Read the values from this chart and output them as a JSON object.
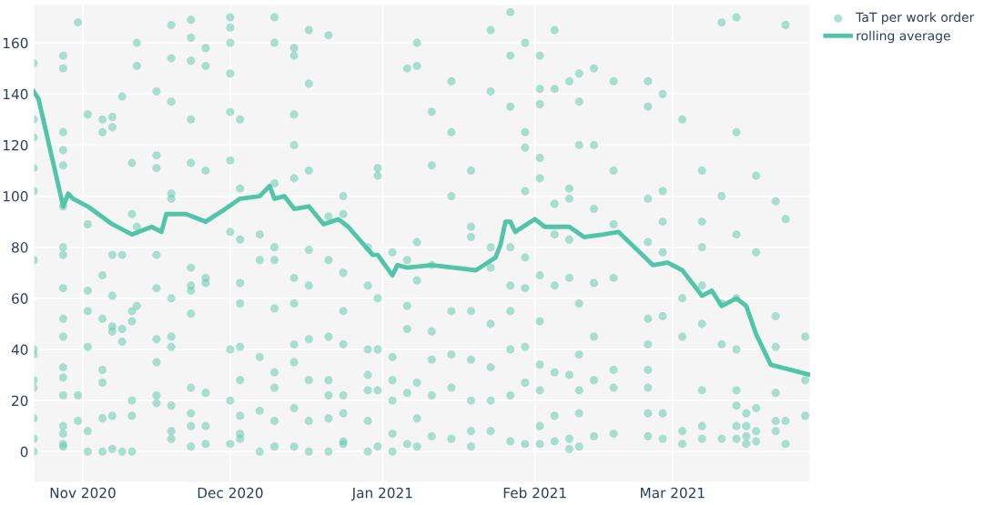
{
  "chart_data": {
    "type": "scatter",
    "xlim": [
      "2020-10-22",
      "2021-03-29"
    ],
    "xticks": [
      {
        "value": "2020-11-01",
        "label": "Nov 2020"
      },
      {
        "value": "2020-12-01",
        "label": "Dec 2020"
      },
      {
        "value": "2021-01-01",
        "label": "Jan 2021"
      },
      {
        "value": "2021-02-01",
        "label": "Feb 2021"
      },
      {
        "value": "2021-03-01",
        "label": "Mar 2021"
      }
    ],
    "ylim": [
      -12,
      175
    ],
    "yticks": [
      0,
      20,
      40,
      60,
      80,
      100,
      120,
      140,
      160
    ],
    "grid": true,
    "legend": "top right",
    "series": [
      {
        "name": "TaT per work order",
        "marker": "circle",
        "color": "#5cc8ab",
        "x": [
          "2020-10-22",
          "2020-10-22",
          "2020-10-22",
          "2020-10-22",
          "2020-10-22",
          "2020-10-22",
          "2020-10-22",
          "2020-10-22",
          "2020-10-22",
          "2020-10-22",
          "2020-10-22",
          "2020-10-22",
          "2020-10-22",
          "2020-10-28",
          "2020-10-28",
          "2020-10-28",
          "2020-10-28",
          "2020-10-28",
          "2020-10-28",
          "2020-10-28",
          "2020-10-28",
          "2020-10-28",
          "2020-10-28",
          "2020-10-28",
          "2020-10-28",
          "2020-10-28",
          "2020-10-28",
          "2020-10-28",
          "2020-10-28",
          "2020-10-28",
          "2020-10-28",
          "2020-10-31",
          "2020-10-31",
          "2020-10-31",
          "2020-11-02",
          "2020-11-02",
          "2020-11-02",
          "2020-11-02",
          "2020-11-02",
          "2020-11-02",
          "2020-11-02",
          "2020-11-05",
          "2020-11-05",
          "2020-11-05",
          "2020-11-05",
          "2020-11-05",
          "2020-11-05",
          "2020-11-05",
          "2020-11-05",
          "2020-11-07",
          "2020-11-07",
          "2020-11-07",
          "2020-11-07",
          "2020-11-07",
          "2020-11-07",
          "2020-11-07",
          "2020-11-07",
          "2020-11-09",
          "2020-11-09",
          "2020-11-09",
          "2020-11-09",
          "2020-11-09",
          "2020-11-11",
          "2020-11-11",
          "2020-11-11",
          "2020-11-11",
          "2020-11-11",
          "2020-11-11",
          "2020-11-11",
          "2020-11-12",
          "2020-11-12",
          "2020-11-12",
          "2020-11-12",
          "2020-11-16",
          "2020-11-16",
          "2020-11-16",
          "2020-11-16",
          "2020-11-16",
          "2020-11-16",
          "2020-11-16",
          "2020-11-16",
          "2020-11-16",
          "2020-11-19",
          "2020-11-19",
          "2020-11-19",
          "2020-11-19",
          "2020-11-19",
          "2020-11-19",
          "2020-11-19",
          "2020-11-19",
          "2020-11-19",
          "2020-11-19",
          "2020-11-19",
          "2020-11-23",
          "2020-11-23",
          "2020-11-23",
          "2020-11-23",
          "2020-11-23",
          "2020-11-23",
          "2020-11-23",
          "2020-11-23",
          "2020-11-23",
          "2020-11-23",
          "2020-11-23",
          "2020-11-23",
          "2020-11-23",
          "2020-11-26",
          "2020-11-26",
          "2020-11-26",
          "2020-11-26",
          "2020-11-26",
          "2020-11-26",
          "2020-11-26",
          "2020-11-26",
          "2020-12-01",
          "2020-12-01",
          "2020-12-01",
          "2020-12-01",
          "2020-12-01",
          "2020-12-01",
          "2020-12-01",
          "2020-12-01",
          "2020-12-01",
          "2020-12-01",
          "2020-12-03",
          "2020-12-03",
          "2020-12-03",
          "2020-12-03",
          "2020-12-03",
          "2020-12-03",
          "2020-12-03",
          "2020-12-03",
          "2020-12-03",
          "2020-12-03",
          "2020-12-07",
          "2020-12-07",
          "2020-12-07",
          "2020-12-07",
          "2020-12-07",
          "2020-12-10",
          "2020-12-10",
          "2020-12-10",
          "2020-12-10",
          "2020-12-10",
          "2020-12-10",
          "2020-12-10",
          "2020-12-10",
          "2020-12-10",
          "2020-12-10",
          "2020-12-14",
          "2020-12-14",
          "2020-12-14",
          "2020-12-14",
          "2020-12-14",
          "2020-12-14",
          "2020-12-14",
          "2020-12-14",
          "2020-12-14",
          "2020-12-14",
          "2020-12-14",
          "2020-12-17",
          "2020-12-17",
          "2020-12-17",
          "2020-12-17",
          "2020-12-17",
          "2020-12-17",
          "2020-12-17",
          "2020-12-17",
          "2020-12-17",
          "2020-12-21",
          "2020-12-21",
          "2020-12-21",
          "2020-12-21",
          "2020-12-21",
          "2020-12-21",
          "2020-12-21",
          "2020-12-21",
          "2020-12-24",
          "2020-12-24",
          "2020-12-24",
          "2020-12-24",
          "2020-12-24",
          "2020-12-24",
          "2020-12-24",
          "2020-12-24",
          "2020-12-24",
          "2020-12-29",
          "2020-12-29",
          "2020-12-29",
          "2020-12-29",
          "2020-12-29",
          "2020-12-29",
          "2020-12-29",
          "2020-12-31",
          "2020-12-31",
          "2020-12-31",
          "2020-12-31",
          "2020-12-31",
          "2020-12-31",
          "2021-01-03",
          "2021-01-03",
          "2021-01-03",
          "2021-01-03",
          "2021-01-03",
          "2021-01-03",
          "2021-01-06",
          "2021-01-06",
          "2021-01-06",
          "2021-01-06",
          "2021-01-06",
          "2021-01-06",
          "2021-01-08",
          "2021-01-08",
          "2021-01-08",
          "2021-01-08",
          "2021-01-08",
          "2021-01-08",
          "2021-01-08",
          "2021-01-11",
          "2021-01-11",
          "2021-01-11",
          "2021-01-11",
          "2021-01-11",
          "2021-01-11",
          "2021-01-11",
          "2021-01-15",
          "2021-01-15",
          "2021-01-15",
          "2021-01-15",
          "2021-01-15",
          "2021-01-15",
          "2021-01-15",
          "2021-01-19",
          "2021-01-19",
          "2021-01-19",
          "2021-01-19",
          "2021-01-19",
          "2021-01-19",
          "2021-01-19",
          "2021-01-19",
          "2021-01-23",
          "2021-01-23",
          "2021-01-23",
          "2021-01-23",
          "2021-01-23",
          "2021-01-23",
          "2021-01-23",
          "2021-01-23",
          "2021-01-27",
          "2021-01-27",
          "2021-01-27",
          "2021-01-27",
          "2021-01-27",
          "2021-01-27",
          "2021-01-27",
          "2021-01-27",
          "2021-01-27",
          "2021-01-30",
          "2021-01-30",
          "2021-01-30",
          "2021-01-30",
          "2021-01-30",
          "2021-01-30",
          "2021-01-30",
          "2021-01-30",
          "2021-01-30",
          "2021-02-02",
          "2021-02-02",
          "2021-02-02",
          "2021-02-02",
          "2021-02-02",
          "2021-02-02",
          "2021-02-02",
          "2021-02-02",
          "2021-02-02",
          "2021-02-02",
          "2021-02-02",
          "2021-02-05",
          "2021-02-05",
          "2021-02-05",
          "2021-02-05",
          "2021-02-05",
          "2021-02-05",
          "2021-02-05",
          "2021-02-05",
          "2021-02-08",
          "2021-02-08",
          "2021-02-08",
          "2021-02-08",
          "2021-02-08",
          "2021-02-08",
          "2021-02-08",
          "2021-02-08",
          "2021-02-10",
          "2021-02-10",
          "2021-02-10",
          "2021-02-10",
          "2021-02-10",
          "2021-02-10",
          "2021-02-10",
          "2021-02-10",
          "2021-02-13",
          "2021-02-13",
          "2021-02-13",
          "2021-02-13",
          "2021-02-13",
          "2021-02-13",
          "2021-02-13",
          "2021-02-17",
          "2021-02-17",
          "2021-02-17",
          "2021-02-17",
          "2021-02-17",
          "2021-02-17",
          "2021-02-17",
          "2021-02-24",
          "2021-02-24",
          "2021-02-24",
          "2021-02-24",
          "2021-02-24",
          "2021-02-24",
          "2021-02-24",
          "2021-02-24",
          "2021-02-24",
          "2021-02-24",
          "2021-02-27",
          "2021-02-27",
          "2021-02-27",
          "2021-02-27",
          "2021-02-27",
          "2021-02-27",
          "2021-02-27",
          "2021-03-03",
          "2021-03-03",
          "2021-03-03",
          "2021-03-03",
          "2021-03-03",
          "2021-03-07",
          "2021-03-07",
          "2021-03-07",
          "2021-03-07",
          "2021-03-07",
          "2021-03-07",
          "2021-03-07",
          "2021-03-07",
          "2021-03-11",
          "2021-03-11",
          "2021-03-11",
          "2021-03-11",
          "2021-03-11",
          "2021-03-14",
          "2021-03-14",
          "2021-03-14",
          "2021-03-14",
          "2021-03-14",
          "2021-03-14",
          "2021-03-14",
          "2021-03-14",
          "2021-03-14",
          "2021-03-16",
          "2021-03-16",
          "2021-03-16",
          "2021-03-16",
          "2021-03-18",
          "2021-03-18",
          "2021-03-18",
          "2021-03-18",
          "2021-03-18",
          "2021-03-22",
          "2021-03-22",
          "2021-03-22",
          "2021-03-22",
          "2021-03-22",
          "2021-03-22",
          "2021-03-24",
          "2021-03-24",
          "2021-03-24",
          "2021-03-24",
          "2021-03-28",
          "2021-03-28",
          "2021-03-28"
        ],
        "values": [
          40,
          38,
          28,
          25,
          13,
          5,
          0,
          111,
          130,
          152,
          123,
          102,
          75,
          155,
          150,
          125,
          118,
          112,
          96,
          80,
          77,
          64,
          52,
          45,
          33,
          29,
          22,
          10,
          7,
          3,
          2,
          168,
          22,
          12,
          132,
          89,
          63,
          55,
          41,
          8,
          0,
          130,
          125,
          69,
          52,
          32,
          27,
          13,
          0,
          131,
          127,
          77,
          61,
          49,
          47,
          14,
          1,
          139,
          77,
          48,
          43,
          0,
          113,
          93,
          55,
          51,
          20,
          14,
          0,
          160,
          151,
          88,
          57,
          141,
          116,
          111,
          77,
          64,
          44,
          35,
          22,
          19,
          167,
          154,
          137,
          99,
          101,
          60,
          45,
          41,
          18,
          5,
          8,
          169,
          162,
          153,
          130,
          113,
          72,
          65,
          63,
          54,
          25,
          15,
          10,
          2,
          158,
          151,
          110,
          68,
          66,
          23,
          10,
          3,
          170,
          166,
          160,
          148,
          133,
          114,
          86,
          40,
          20,
          3,
          130,
          103,
          83,
          66,
          58,
          41,
          28,
          14,
          5,
          7,
          85,
          75,
          37,
          16,
          0,
          170,
          160,
          105,
          80,
          75,
          56,
          31,
          25,
          12,
          2,
          158,
          155,
          132,
          120,
          107,
          68,
          58,
          42,
          35,
          17,
          2,
          165,
          144,
          110,
          79,
          65,
          44,
          28,
          12,
          0,
          163,
          92,
          75,
          45,
          28,
          22,
          13,
          0,
          100,
          93,
          70,
          55,
          42,
          22,
          15,
          4,
          3,
          80,
          65,
          40,
          30,
          24,
          12,
          0,
          111,
          108,
          60,
          40,
          24,
          2,
          78,
          37,
          28,
          20,
          7,
          0,
          150,
          75,
          57,
          48,
          23,
          3,
          160,
          151,
          82,
          67,
          27,
          13,
          2,
          133,
          112,
          73,
          47,
          36,
          22,
          6,
          145,
          125,
          100,
          55,
          38,
          25,
          5,
          110,
          88,
          84,
          55,
          36,
          20,
          8,
          2,
          165,
          141,
          80,
          72,
          50,
          33,
          20,
          8,
          172,
          155,
          135,
          80,
          65,
          55,
          40,
          22,
          4,
          160,
          125,
          119,
          102,
          76,
          64,
          41,
          27,
          3,
          155,
          142,
          136,
          115,
          107,
          69,
          51,
          34,
          24,
          10,
          3,
          165,
          142,
          97,
          85,
          65,
          31,
          14,
          4,
          145,
          103,
          99,
          83,
          68,
          30,
          5,
          1,
          148,
          137,
          120,
          58,
          38,
          24,
          15,
          2,
          150,
          120,
          95,
          66,
          45,
          28,
          6,
          145,
          110,
          89,
          68,
          32,
          25,
          7,
          145,
          135,
          99,
          82,
          52,
          42,
          32,
          25,
          15,
          6,
          140,
          102,
          90,
          78,
          53,
          15,
          5,
          130,
          60,
          45,
          8,
          3,
          110,
          90,
          80,
          65,
          50,
          24,
          10,
          5,
          168,
          100,
          58,
          42,
          5,
          170,
          125,
          85,
          60,
          40,
          24,
          18,
          10,
          5,
          15,
          10,
          6,
          3,
          108,
          78,
          17,
          8,
          4,
          98,
          53,
          41,
          23,
          12,
          8,
          167,
          91,
          12,
          3,
          45,
          28,
          14
        ]
      },
      {
        "name": "rolling average",
        "type": "line",
        "line_style": "solid",
        "color": "#52c5a9",
        "x": [
          "2020-10-22",
          "2020-10-23",
          "2020-10-28",
          "2020-10-29",
          "2020-10-30",
          "2020-11-02",
          "2020-11-07",
          "2020-11-10",
          "2020-11-11",
          "2020-11-15",
          "2020-11-17",
          "2020-11-18",
          "2020-11-22",
          "2020-11-26",
          "2020-11-30",
          "2020-12-03",
          "2020-12-07",
          "2020-12-09",
          "2020-12-10",
          "2020-12-12",
          "2020-12-14",
          "2020-12-17",
          "2020-12-20",
          "2020-12-23",
          "2020-12-25",
          "2020-12-30",
          "2020-12-31",
          "2021-01-03",
          "2021-01-04",
          "2021-01-06",
          "2021-01-11",
          "2021-01-20",
          "2021-01-24",
          "2021-01-25",
          "2021-01-26",
          "2021-01-27",
          "2021-01-28",
          "2021-02-01",
          "2021-02-03",
          "2021-02-08",
          "2021-02-11",
          "2021-02-15",
          "2021-02-18",
          "2021-02-25",
          "2021-02-28",
          "2021-03-03",
          "2021-03-07",
          "2021-03-09",
          "2021-03-11",
          "2021-03-14",
          "2021-03-16",
          "2021-03-18",
          "2021-03-21",
          "2021-03-23",
          "2021-03-29"
        ],
        "values": [
          141,
          138,
          96,
          101,
          99,
          96,
          89,
          86,
          85,
          88,
          86,
          93,
          93,
          90,
          95,
          99,
          100,
          104,
          99,
          100,
          95,
          96,
          89,
          91,
          88,
          77,
          77,
          69,
          73,
          72,
          73,
          71,
          76,
          81,
          90,
          90,
          86,
          91,
          88,
          88,
          84,
          85,
          86,
          73,
          74,
          71,
          61,
          63,
          57,
          60,
          57,
          46,
          34,
          33,
          30
        ]
      }
    ]
  }
}
